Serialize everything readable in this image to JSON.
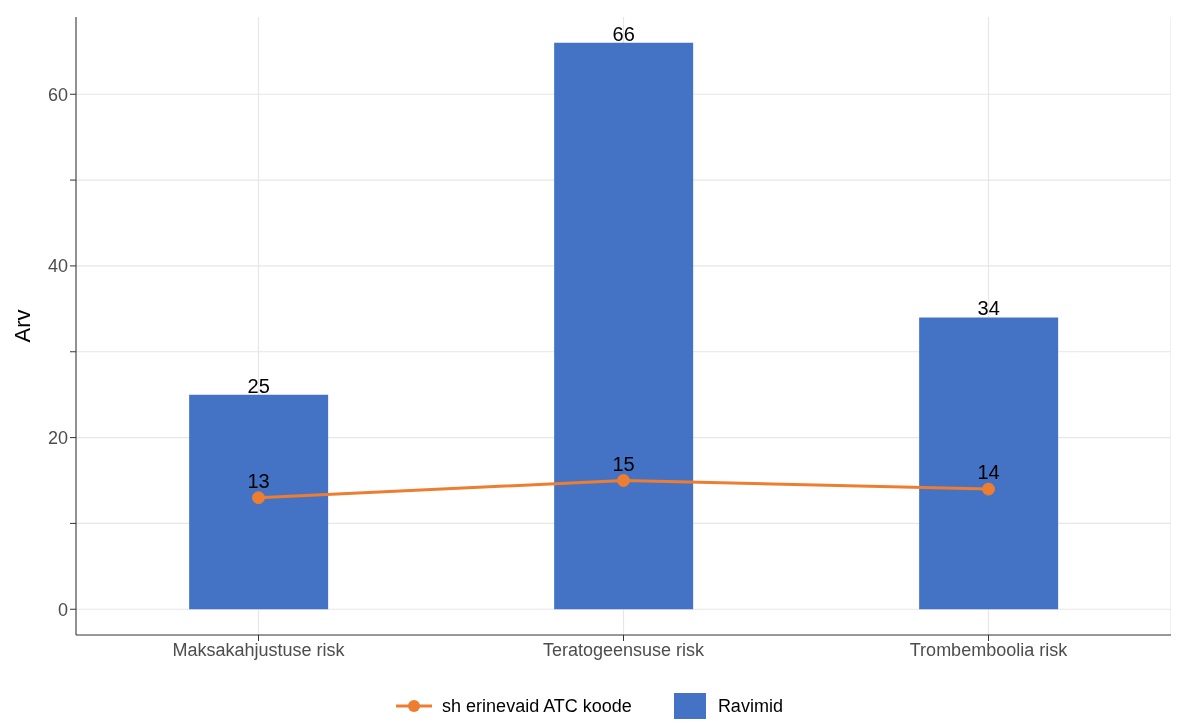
{
  "chart_data": {
    "type": "bar",
    "ylabel": "Arv",
    "categories": [
      "Maksakahjustuse risk",
      "Teratogeensuse risk",
      "Trombemboolia risk"
    ],
    "series": [
      {
        "name": "sh erinevaid ATC koode",
        "type": "line",
        "color": "#ed7d31",
        "values": [
          13,
          15,
          14
        ]
      },
      {
        "name": "Ravimid",
        "color": "#4472c4",
        "values": [
          25,
          66,
          34
        ]
      }
    ],
    "ylim": [
      -3,
      69
    ],
    "yticks": [
      0,
      {
        "value": 10,
        "label": null
      },
      20,
      {
        "value": 30,
        "label": null
      },
      40,
      {
        "value": 50,
        "label": null
      },
      60
    ],
    "grid": true,
    "legend": "bottom",
    "data_labels": true,
    "marker": "circle",
    "line_style": "solid"
  }
}
